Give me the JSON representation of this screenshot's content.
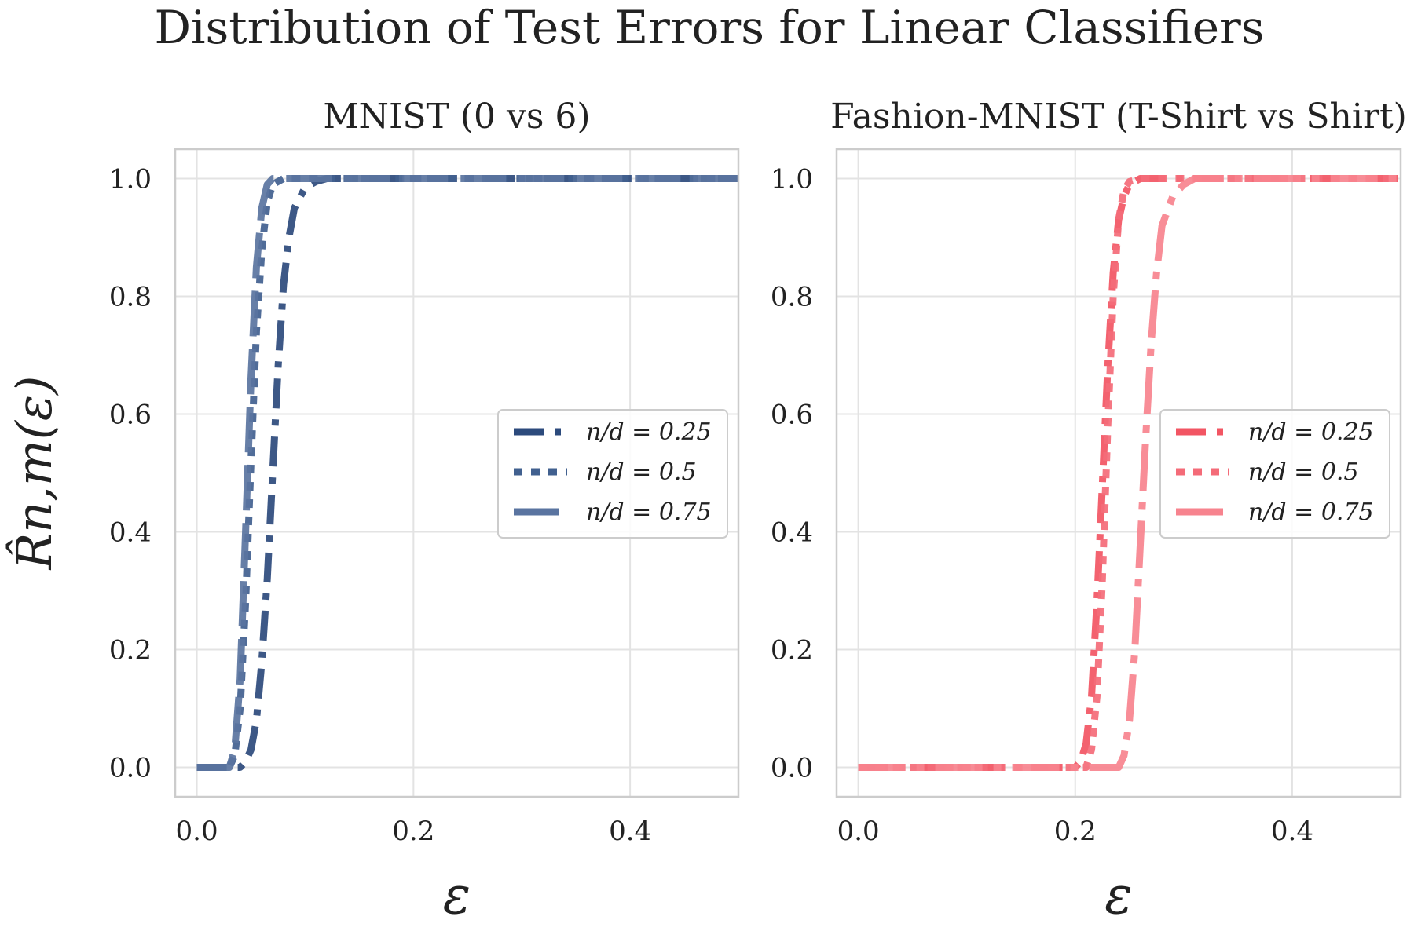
{
  "figure": {
    "suptitle": "Distribution of Test Errors for Linear Classifiers"
  },
  "chart_data": [
    {
      "type": "line",
      "title": "MNIST (0 vs 6)",
      "xlabel": "ε",
      "ylabel": "R̂n,m(ε)",
      "xlim": [
        -0.02,
        0.5
      ],
      "ylim": [
        -0.05,
        1.05
      ],
      "xticks": [
        0.0,
        0.2,
        0.4
      ],
      "xtick_labels": [
        "0.0",
        "0.2",
        "0.4"
      ],
      "yticks": [
        0.0,
        0.2,
        0.4,
        0.6,
        0.8,
        1.0
      ],
      "ytick_labels": [
        "0.0",
        "0.2",
        "0.4",
        "0.6",
        "0.8",
        "1.0"
      ],
      "grid": true,
      "legend_position": "center-right",
      "series": [
        {
          "name": "n/d = 0.25",
          "color": "#2c4a7c",
          "style": "dashdot",
          "x": [
            0.0,
            0.04,
            0.045,
            0.05,
            0.055,
            0.06,
            0.065,
            0.07,
            0.075,
            0.08,
            0.085,
            0.09,
            0.1,
            0.11,
            0.12,
            0.5
          ],
          "y": [
            0.0,
            0.0,
            0.01,
            0.03,
            0.08,
            0.18,
            0.32,
            0.5,
            0.68,
            0.82,
            0.9,
            0.95,
            0.985,
            0.995,
            1.0,
            1.0
          ]
        },
        {
          "name": "n/d = 0.5",
          "color": "#41608f",
          "style": "dotted",
          "x": [
            0.0,
            0.03,
            0.035,
            0.04,
            0.045,
            0.05,
            0.055,
            0.06,
            0.065,
            0.07,
            0.08,
            0.5
          ],
          "y": [
            0.0,
            0.0,
            0.02,
            0.1,
            0.28,
            0.52,
            0.74,
            0.88,
            0.96,
            0.99,
            1.0,
            1.0
          ]
        },
        {
          "name": "n/d = 0.75",
          "color": "#5a74a0",
          "style": "longdash",
          "x": [
            0.0,
            0.03,
            0.035,
            0.04,
            0.045,
            0.05,
            0.055,
            0.06,
            0.065,
            0.07,
            0.5
          ],
          "y": [
            0.0,
            0.0,
            0.03,
            0.15,
            0.4,
            0.66,
            0.85,
            0.95,
            0.99,
            1.0,
            1.0
          ]
        }
      ]
    },
    {
      "type": "line",
      "title": "Fashion-MNIST (T-Shirt vs Shirt)",
      "xlabel": "ε",
      "ylabel": "",
      "xlim": [
        -0.02,
        0.5
      ],
      "ylim": [
        -0.05,
        1.05
      ],
      "xticks": [
        0.0,
        0.2,
        0.4
      ],
      "xtick_labels": [
        "0.0",
        "0.2",
        "0.4"
      ],
      "yticks": [
        0.0,
        0.2,
        0.4,
        0.6,
        0.8,
        1.0
      ],
      "ytick_labels": [
        "0.0",
        "0.2",
        "0.4",
        "0.6",
        "0.8",
        "1.0"
      ],
      "grid": true,
      "legend_position": "center-right",
      "series": [
        {
          "name": "n/d = 0.25",
          "color": "#f25563",
          "style": "dashdot",
          "x": [
            0.0,
            0.2,
            0.205,
            0.21,
            0.215,
            0.22,
            0.225,
            0.23,
            0.235,
            0.24,
            0.245,
            0.25,
            0.26,
            0.27,
            0.5
          ],
          "y": [
            0.0,
            0.0,
            0.01,
            0.04,
            0.12,
            0.28,
            0.48,
            0.68,
            0.84,
            0.93,
            0.97,
            0.99,
            1.0,
            1.0,
            1.0
          ]
        },
        {
          "name": "n/d = 0.5",
          "color": "#f46b78",
          "style": "dotted",
          "x": [
            0.0,
            0.21,
            0.215,
            0.22,
            0.225,
            0.23,
            0.235,
            0.24,
            0.245,
            0.25,
            0.26,
            0.5
          ],
          "y": [
            0.0,
            0.0,
            0.03,
            0.12,
            0.32,
            0.58,
            0.8,
            0.93,
            0.98,
            0.995,
            1.0,
            1.0
          ]
        },
        {
          "name": "n/d = 0.75",
          "color": "#f7838e",
          "style": "longdashdot",
          "x": [
            0.0,
            0.24,
            0.245,
            0.25,
            0.255,
            0.26,
            0.265,
            0.27,
            0.275,
            0.28,
            0.29,
            0.3,
            0.31,
            0.5
          ],
          "y": [
            0.0,
            0.0,
            0.02,
            0.08,
            0.2,
            0.38,
            0.56,
            0.72,
            0.84,
            0.92,
            0.97,
            0.99,
            1.0,
            1.0
          ]
        }
      ]
    }
  ]
}
